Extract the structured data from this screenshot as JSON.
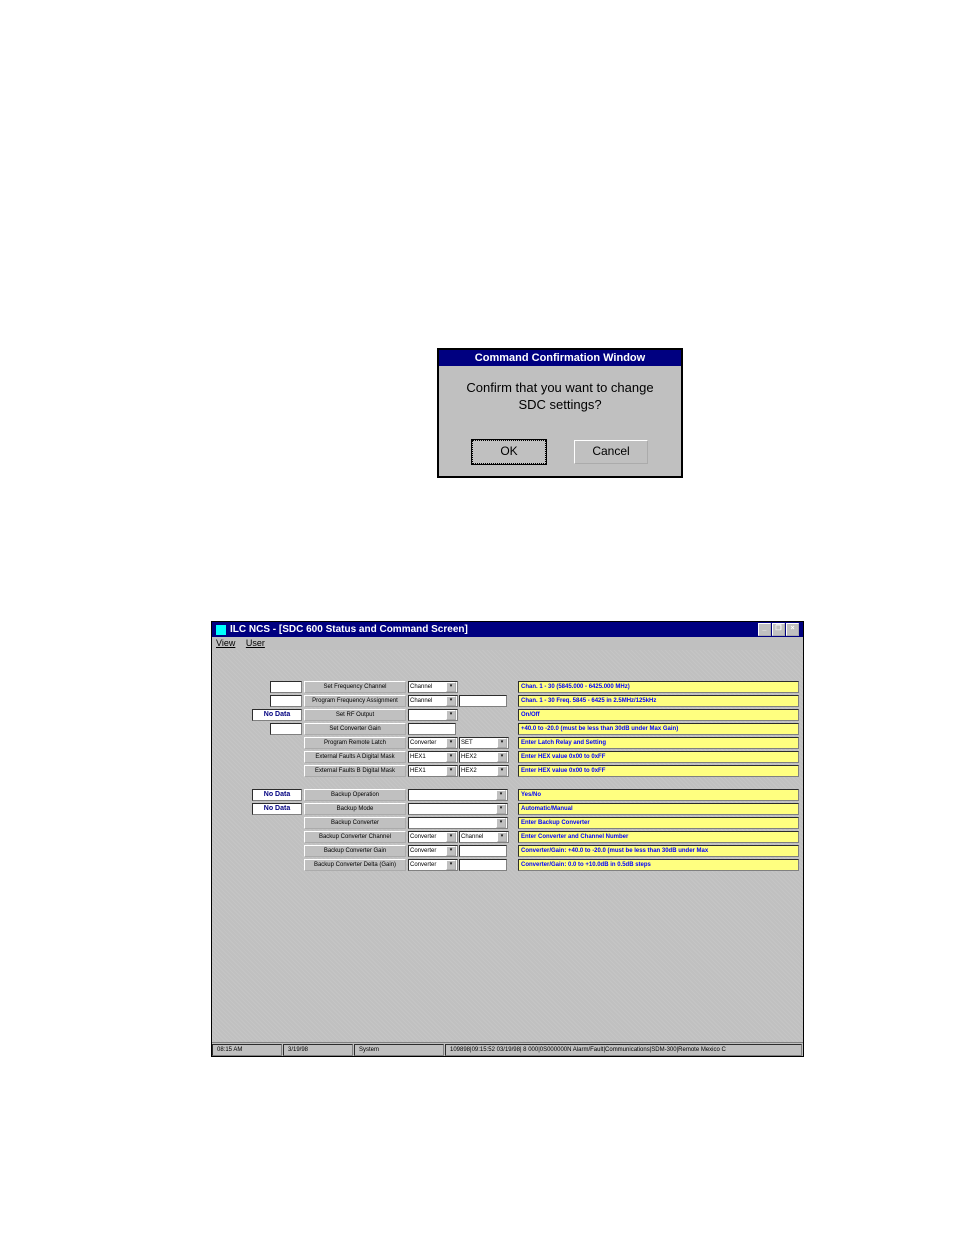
{
  "dialog": {
    "title": "Command Confirmation Window",
    "message_line1": "Confirm that you want to change",
    "message_line2": "SDC settings?",
    "ok": "OK",
    "cancel": "Cancel"
  },
  "app": {
    "title": "ILC NCS - [SDC 600 Status and Command Screen]",
    "menu": {
      "view": "View",
      "user": "User"
    },
    "winbtns": {
      "min": "_",
      "max": "❐",
      "close": "×"
    },
    "nodata": "No Data",
    "rows1": [
      {
        "label": "Set Frequency Channel",
        "drop1": "Channel",
        "hint": "Chan. 1 - 30   (5845.000 - 6425.000 MHz)",
        "left_field": true
      },
      {
        "label": "Program Frequency Assignment",
        "drop1": "Channel",
        "input2": true,
        "hint": "Chan. 1 - 30    Freq. 5845 - 6425 in 2.5MHz/125kHz",
        "left_field": true
      },
      {
        "label": "Set RF Output",
        "dropempty": true,
        "hint": "On/Off",
        "left_nodata": true
      },
      {
        "label": "Set Converter Gain",
        "inputempty": true,
        "hint": "+40.0 to -20.0 (must be less than 30dB under Max Gain)",
        "left_field": true
      },
      {
        "label": "Program Remote Latch",
        "drop1": "Converter",
        "drop2": "SET",
        "hint": "Enter Latch Relay and Setting"
      },
      {
        "label": "External Faults A Digital Mask",
        "drop1": "HEX1",
        "drop2": "HEX2",
        "hint": "Enter HEX value 0x00 to 0xFF"
      },
      {
        "label": "External Faults B Digital Mask",
        "drop1": "HEX1",
        "drop2": "HEX2",
        "hint": "Enter HEX value 0x00 to 0xFF"
      }
    ],
    "rows2": [
      {
        "label": "Backup Operation",
        "dropempty_wide": true,
        "hint": "Yes/No",
        "left_nodata": true
      },
      {
        "label": "Backup Mode",
        "dropempty_wide": true,
        "hint": "Automatic/Manual",
        "left_nodata": true
      },
      {
        "label": "Backup Converter",
        "dropempty_wide": true,
        "hint": "Enter Backup Converter"
      },
      {
        "label": "Backup Converter Channel",
        "drop1": "Converter",
        "drop2": "Channel",
        "hint": "Enter Converter and Channel Number"
      },
      {
        "label": "Backup Converter Gain",
        "drop1": "Converter",
        "inputempty2": true,
        "hint": "Converter/Gain: +40.0 to -20.0 (must be less than 30dB under Max"
      },
      {
        "label": "Backup Converter Delta (Gain)",
        "drop1": "Converter",
        "inputempty2": true,
        "hint": "Converter/Gain: 0.0 to +10.0dB in 0.5dB steps"
      }
    ],
    "status": {
      "time": "08:15 AM",
      "date": "3/19/98",
      "user": "System",
      "log": "109898|09:15:52 03/19/98| 8 000|0S000000N   Alarm/Fault|Communications|SDM-300|Remote Mexico C"
    }
  },
  "colors": {
    "titlebar_bg": "#000080",
    "titlebar_fg": "#ffffff",
    "dialog_bg": "#c0c0c0",
    "hint_bg": "#ffff80",
    "hint_fg": "#0000ff"
  }
}
